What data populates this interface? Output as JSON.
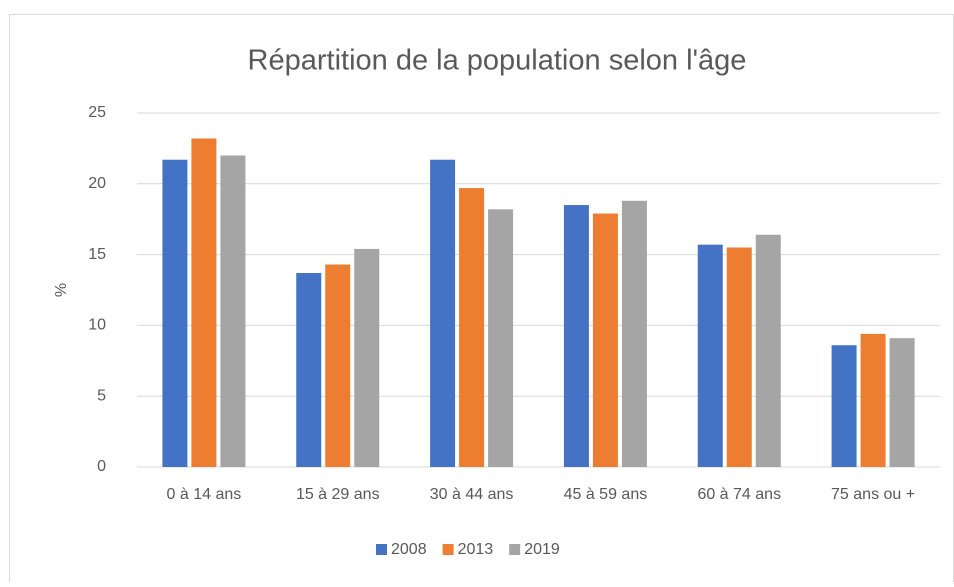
{
  "chart_data": {
    "type": "bar",
    "title": "Répartition de la population selon l'âge",
    "y_label": "%",
    "categories": [
      "0 à 14 ans",
      "15 à 29 ans",
      "30 à 44 ans",
      "45 à 59 ans",
      "60 à 74 ans",
      "75 ans ou +"
    ],
    "series": [
      {
        "name": "2008",
        "color": "#4472c4",
        "values": [
          21.7,
          13.7,
          21.7,
          18.5,
          15.7,
          8.6
        ]
      },
      {
        "name": "2013",
        "color": "#ed7d31",
        "values": [
          23.2,
          14.3,
          19.7,
          17.9,
          15.5,
          9.4
        ]
      },
      {
        "name": "2019",
        "color": "#a5a5a5",
        "values": [
          22.0,
          15.4,
          18.2,
          18.8,
          16.4,
          9.1
        ]
      }
    ],
    "ylim": [
      0,
      25
    ],
    "yticks": [
      0,
      5,
      10,
      15,
      20,
      25
    ],
    "grid": true,
    "legend": "bottom"
  }
}
